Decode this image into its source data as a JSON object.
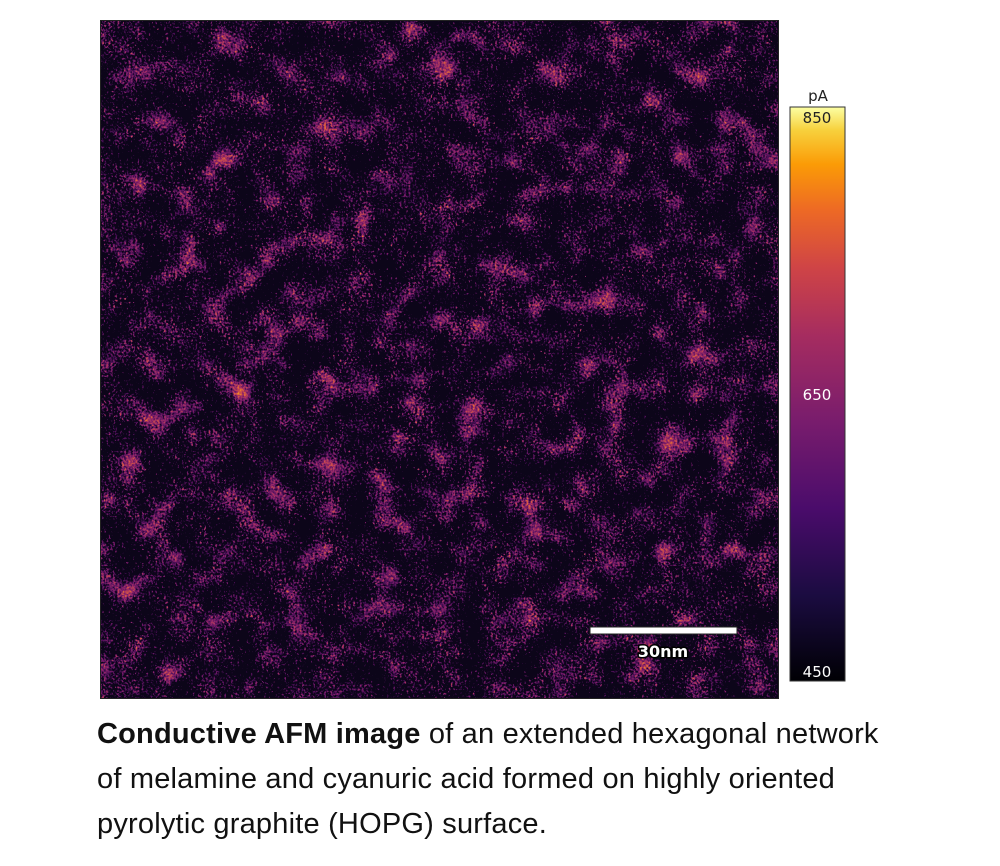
{
  "figure": {
    "colorbar": {
      "unit": "pA",
      "ticks": [
        850,
        650,
        450
      ]
    },
    "scale_bar": {
      "label": "30nm"
    },
    "caption": {
      "bold": "Conductive AFM image",
      "text": "of an extended hexagonal network of melamine and cyanuric acid formed on highly oriented pyrolytic graphite (HOPG) surface."
    }
  }
}
